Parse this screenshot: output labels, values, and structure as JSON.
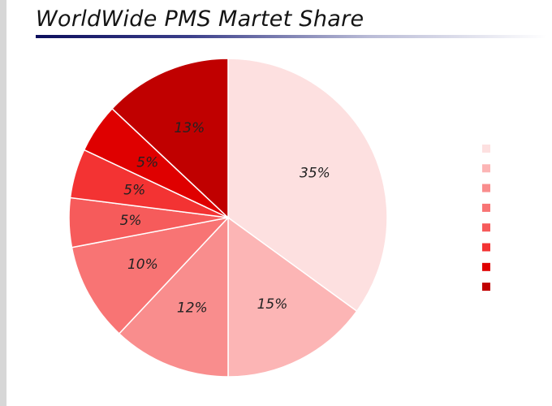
{
  "slide": {
    "title": "WorldWide PMS Martet Share"
  },
  "chart_data": {
    "type": "pie",
    "title": "WorldWide PMS Martet Share",
    "start_angle_deg": 0,
    "direction": "clockwise",
    "labels_shown": true,
    "legend": "right",
    "legend_labels": "not legible",
    "slices": [
      {
        "value": 35,
        "label": "35%",
        "color": "#fde0e0"
      },
      {
        "value": 15,
        "label": "15%",
        "color": "#fcb5b5"
      },
      {
        "value": 12,
        "label": "12%",
        "color": "#f98d8d"
      },
      {
        "value": 10,
        "label": "10%",
        "color": "#f87474"
      },
      {
        "value": 5,
        "label": "5%",
        "color": "#f65b5b"
      },
      {
        "value": 5,
        "label": "5%",
        "color": "#f33333"
      },
      {
        "value": 5,
        "label": "5%",
        "color": "#df0000"
      },
      {
        "value": 13,
        "label": "13%",
        "color": "#c00000"
      }
    ]
  }
}
